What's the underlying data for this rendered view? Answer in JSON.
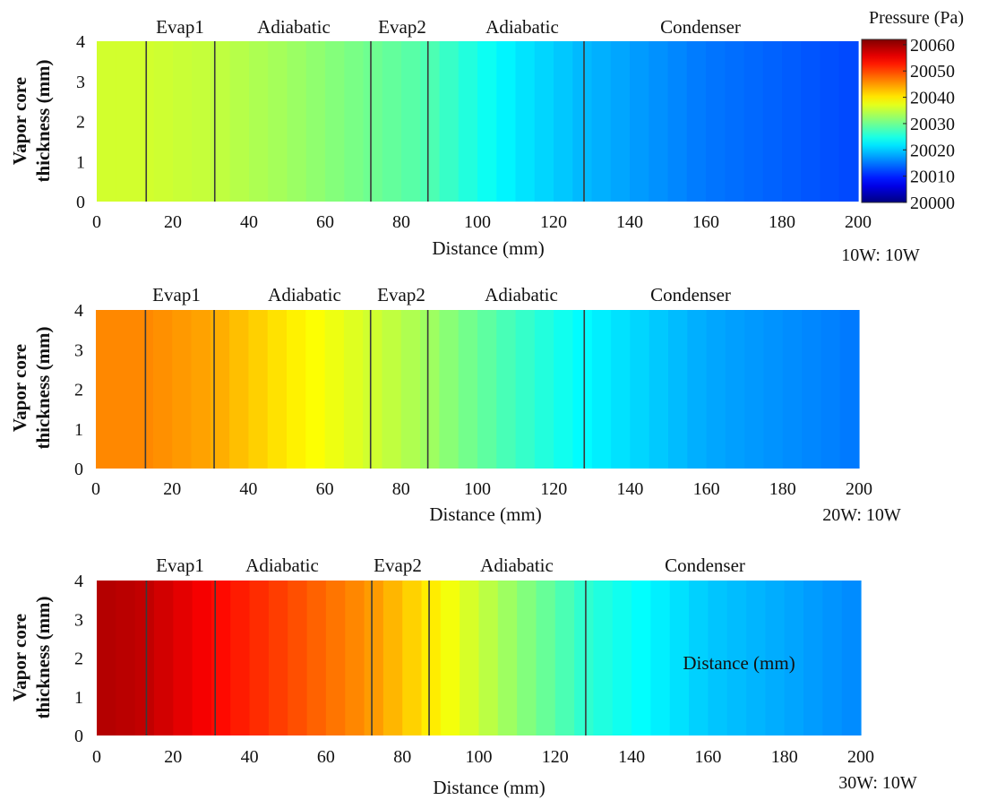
{
  "figure": {
    "colorbar": {
      "title": "Pressure (Pa)",
      "ticks": [
        20060,
        20050,
        20040,
        20030,
        20020,
        20010,
        20000
      ],
      "range": [
        20000,
        20062
      ],
      "colormap": "jet"
    }
  },
  "chart_data": [
    {
      "type": "heatmap",
      "title": "",
      "xlabel": "Distance (mm)",
      "ylabel": "Vapor core thickness (mm)",
      "xlim": [
        0,
        200
      ],
      "ylim": [
        0,
        4
      ],
      "xticks": [
        0,
        20,
        40,
        60,
        80,
        100,
        120,
        140,
        160,
        180,
        200
      ],
      "yticks": [
        0,
        1,
        2,
        3,
        4
      ],
      "region_labels": [
        "Evap1",
        "Adiabatic",
        "Evap2",
        "Adiabatic",
        "Condenser"
      ],
      "region_boundaries_mm": [
        13,
        31,
        72,
        87,
        128
      ],
      "annotation": "10W: 10W",
      "pressure_profile": {
        "x": [
          0,
          13,
          31,
          50,
          72,
          87,
          110,
          128,
          160,
          200
        ],
        "pressure_pa": [
          20036,
          20036,
          20035,
          20033,
          20030,
          20028,
          20022,
          20019,
          20015,
          20012
        ]
      }
    },
    {
      "type": "heatmap",
      "title": "",
      "xlabel": "Distance (mm)",
      "ylabel": "Vapor core thickness (mm)",
      "xlim": [
        0,
        200
      ],
      "ylim": [
        0,
        4
      ],
      "xticks": [
        0,
        20,
        40,
        60,
        80,
        100,
        120,
        140,
        160,
        180,
        200
      ],
      "yticks": [
        0,
        1,
        2,
        3,
        4
      ],
      "region_labels": [
        "Evap1",
        "Adiabatic",
        "Evap2",
        "Adiabatic",
        "Condenser"
      ],
      "region_boundaries_mm": [
        13,
        31,
        72,
        87,
        128
      ],
      "annotation": "20W: 10W",
      "pressure_profile": {
        "x": [
          0,
          13,
          31,
          50,
          72,
          87,
          110,
          128,
          160,
          200
        ],
        "pressure_pa": [
          20046,
          20046,
          20044,
          20040,
          20036,
          20033,
          20027,
          20023,
          20018,
          20015
        ]
      }
    },
    {
      "type": "heatmap",
      "title": "",
      "xlabel": "Distance (mm)",
      "ylabel": "Vapor core thickness (mm)",
      "xlim": [
        0,
        200
      ],
      "ylim": [
        0,
        4
      ],
      "xticks": [
        0,
        20,
        40,
        60,
        80,
        100,
        120,
        140,
        160,
        180,
        200
      ],
      "yticks": [
        0,
        1,
        2,
        3,
        4
      ],
      "region_labels": [
        "Evap1",
        "Adiabatic",
        "Evap2",
        "Adiabatic",
        "Condenser"
      ],
      "region_boundaries_mm": [
        13,
        31,
        72,
        87,
        128
      ],
      "annotation": "30W: 10W",
      "overlay_label": "Distance (mm)",
      "pressure_profile": {
        "x": [
          0,
          13,
          31,
          50,
          72,
          87,
          110,
          128,
          160,
          200
        ],
        "pressure_pa": [
          20059,
          20058,
          20054,
          20050,
          20045,
          20040,
          20032,
          20026,
          20020,
          20016
        ]
      }
    }
  ]
}
